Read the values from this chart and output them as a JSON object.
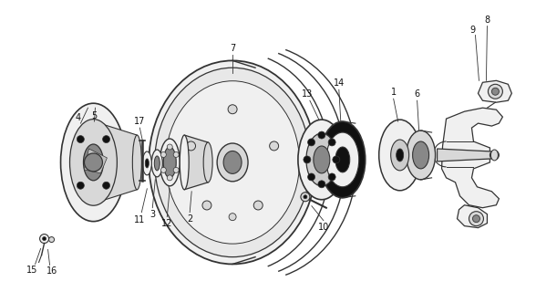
{
  "bg_color": "#ffffff",
  "line_color": "#333333",
  "fill_light": "#f0f0f0",
  "fill_mid": "#d8d8d8",
  "fill_dark": "#888888",
  "fill_black": "#111111",
  "figsize": [
    5.88,
    3.2
  ],
  "dpi": 100
}
